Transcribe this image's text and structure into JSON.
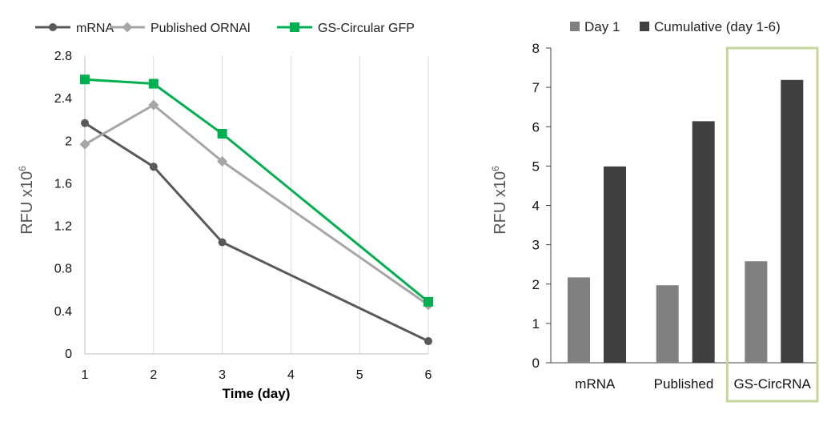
{
  "chart_data": [
    {
      "type": "line",
      "xlabel": "Time (day)",
      "ylabel_main": "RFU x10",
      "ylabel_sup": "6",
      "ylim": [
        0,
        2.8
      ],
      "yticks": [
        "0",
        "0.4",
        "0.8",
        "1.2",
        "1.6",
        "2",
        "2.4",
        "2.8"
      ],
      "categories": [
        "1",
        "2",
        "3",
        "4",
        "5",
        "6"
      ],
      "grid": "vertical",
      "legend": "top",
      "series": [
        {
          "name": "mRNA",
          "color": "#595959",
          "marker": "circle",
          "values": [
            2.17,
            1.76,
            1.05,
            null,
            null,
            0.12
          ]
        },
        {
          "name": "Published ORNAl",
          "color": "#a6a6a6",
          "marker": "diamond",
          "values": [
            1.97,
            2.34,
            1.81,
            null,
            null,
            0.46
          ]
        },
        {
          "name": "GS-Circular GFP",
          "color": "#00b050",
          "marker": "square",
          "values": [
            2.58,
            2.54,
            2.07,
            null,
            null,
            0.49
          ]
        }
      ]
    },
    {
      "type": "bar",
      "ylabel_main": "RFU x10",
      "ylabel_sup": "6",
      "ylim": [
        0,
        8
      ],
      "yticks": [
        "0",
        "1",
        "2",
        "3",
        "4",
        "5",
        "6",
        "7",
        "8"
      ],
      "categories": [
        "mRNA",
        "Published",
        "GS-CircRNA"
      ],
      "legend": "top",
      "highlight": {
        "category": "GS-CircRNA",
        "color": "#c4d79b"
      },
      "series": [
        {
          "name": "Day 1",
          "color": "#808080",
          "values": [
            2.17,
            1.97,
            2.58
          ]
        },
        {
          "name": "Cumulative (day 1-6)",
          "color": "#404040",
          "values": [
            4.99,
            6.14,
            7.19
          ]
        }
      ]
    }
  ]
}
